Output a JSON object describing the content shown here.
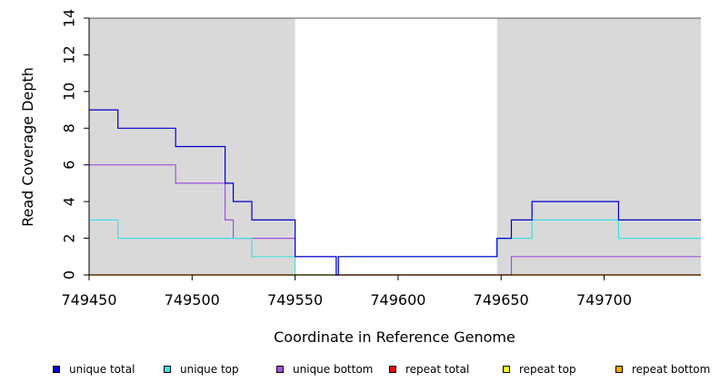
{
  "chart_data": {
    "type": "line",
    "title": "",
    "xlabel": "Coordinate in Reference Genome",
    "ylabel": "Read Coverage Depth",
    "xlim": [
      749450,
      749747
    ],
    "ylim": [
      0,
      14
    ],
    "xticks": [
      749450,
      749500,
      749550,
      749600,
      749650,
      749700
    ],
    "yticks": [
      0,
      2,
      4,
      6,
      8,
      10,
      12,
      14
    ],
    "grid": false,
    "shaded_regions": [
      {
        "x0": 749450,
        "x1": 749550,
        "color": "#d9d9d9"
      },
      {
        "x0": 749648,
        "x1": 749747,
        "color": "#d9d9d9"
      }
    ],
    "legend_position": "bottom",
    "series": [
      {
        "name": "unique total",
        "color": "#0000cc",
        "steps": [
          [
            749450,
            9
          ],
          [
            749464,
            8
          ],
          [
            749492,
            7
          ],
          [
            749516,
            5
          ],
          [
            749520,
            4
          ],
          [
            749529,
            3
          ],
          [
            749550,
            1
          ],
          [
            749570,
            0
          ],
          [
            749571,
            1
          ],
          [
            749648,
            2
          ],
          [
            749655,
            3
          ],
          [
            749665,
            4
          ],
          [
            749707,
            3
          ],
          [
            749747,
            3
          ]
        ]
      },
      {
        "name": "unique top",
        "color": "#40e0e0",
        "steps": [
          [
            749450,
            3
          ],
          [
            749464,
            2
          ],
          [
            749529,
            1
          ],
          [
            749550,
            0
          ],
          [
            749571,
            1
          ],
          [
            749648,
            2
          ],
          [
            749665,
            3
          ],
          [
            749707,
            2
          ],
          [
            749747,
            2
          ]
        ]
      },
      {
        "name": "unique bottom",
        "color": "#a050e0",
        "steps": [
          [
            749450,
            6
          ],
          [
            749492,
            5
          ],
          [
            749516,
            3
          ],
          [
            749520,
            2
          ],
          [
            749550,
            1
          ],
          [
            749570,
            0
          ],
          [
            749655,
            1
          ],
          [
            749747,
            1
          ]
        ]
      },
      {
        "name": "repeat total",
        "color": "#ff0000",
        "steps": [
          [
            749450,
            0
          ],
          [
            749747,
            0
          ]
        ]
      },
      {
        "name": "repeat top",
        "color": "#ffff00",
        "steps": [
          [
            749450,
            0
          ],
          [
            749747,
            0
          ]
        ]
      },
      {
        "name": "repeat bottom",
        "color": "#ffa500",
        "steps": [
          [
            749450,
            0
          ],
          [
            749747,
            0
          ]
        ]
      }
    ]
  }
}
